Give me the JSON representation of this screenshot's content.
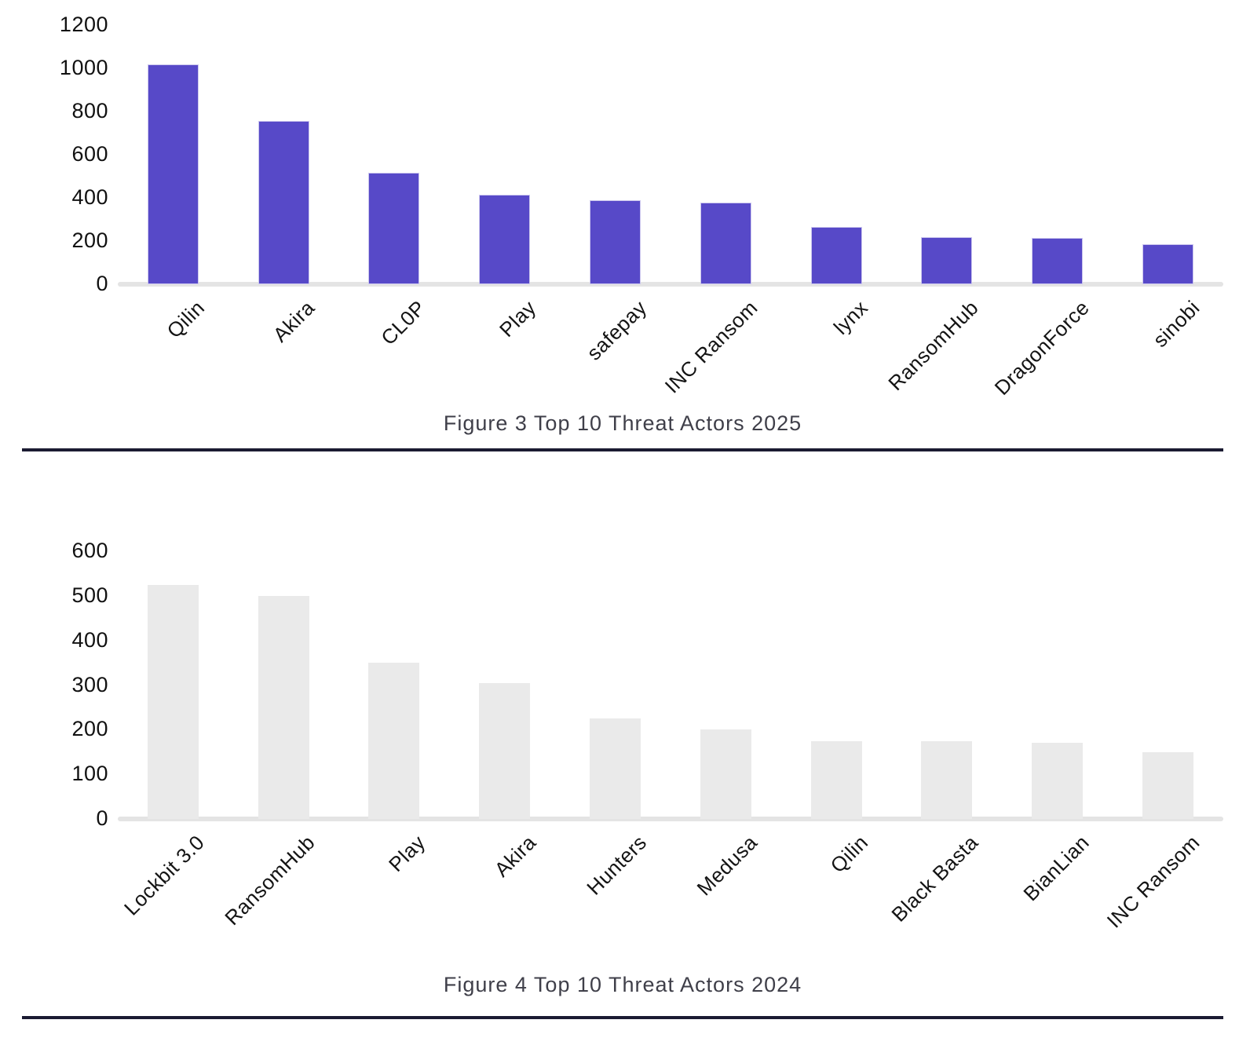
{
  "style": {
    "axis_line_color": "#E4E4E4",
    "divider_color": "#1B1B32",
    "tick_label_color": "#111111",
    "caption_color": "#3F3F49"
  },
  "chart_data": [
    {
      "type": "bar",
      "title": "Figure 3 Top 10 Threat Actors 2025",
      "categories": [
        "Qilin",
        "Akira",
        "CL0P",
        "Play",
        "safepay",
        "INC Ransom",
        "lynx",
        "RansomHub",
        "DragonForce",
        "sinobi"
      ],
      "values": [
        1020,
        755,
        515,
        415,
        390,
        380,
        265,
        220,
        215,
        185
      ],
      "ylim": [
        0,
        1200
      ],
      "ytick_step": 200,
      "yticks": [
        0,
        200,
        400,
        600,
        800,
        1000,
        1200
      ],
      "bar_color": "#5749C8",
      "bar_border_color": "#CCC7EE",
      "xlabel": "",
      "ylabel": "",
      "grid": false,
      "legend": null
    },
    {
      "type": "bar",
      "title": "Figure 4 Top 10 Threat Actors 2024",
      "categories": [
        "Lockbit 3.0",
        "RansomHub",
        "Play",
        "Akira",
        "Hunters",
        "Medusa",
        "Qilin",
        "Black Basta",
        "BianLian",
        "INC Ransom"
      ],
      "values": [
        525,
        500,
        350,
        305,
        225,
        200,
        175,
        175,
        170,
        150
      ],
      "ylim": [
        0,
        600
      ],
      "ytick_step": 100,
      "yticks": [
        0,
        100,
        200,
        300,
        400,
        500,
        600
      ],
      "bar_color": "#EAEAEA",
      "bar_border_color": null,
      "xlabel": "",
      "ylabel": "",
      "grid": false,
      "legend": null
    }
  ]
}
